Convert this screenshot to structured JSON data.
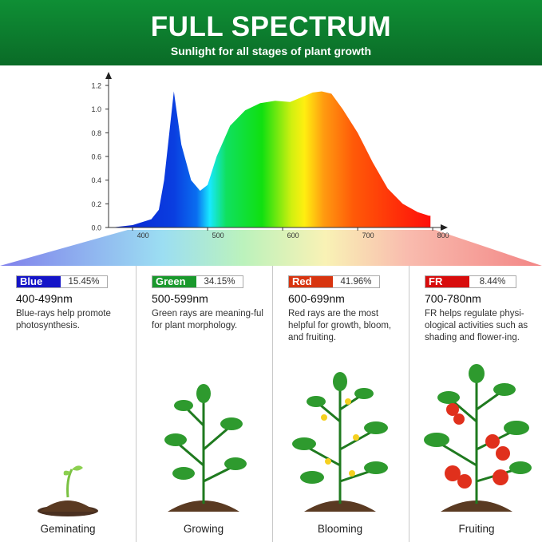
{
  "header": {
    "title": "FULL SPECTRUM",
    "subtitle": "Sunlight for all stages of plant growth"
  },
  "chart_data": {
    "type": "area",
    "title": "",
    "xlabel": "",
    "ylabel": "",
    "xlim": [
      368,
      810
    ],
    "ylim": [
      0,
      1.25
    ],
    "x_ticks": [
      "400",
      "500",
      "600",
      "700",
      "800"
    ],
    "y_ticks": [
      "0.0",
      "0.2",
      "0.4",
      "0.6",
      "0.8",
      "1.0",
      "1.2"
    ],
    "x": [
      372,
      400,
      425,
      435,
      442,
      455,
      465,
      478,
      490,
      500,
      512,
      530,
      550,
      570,
      590,
      610,
      625,
      640,
      652,
      665,
      680,
      700,
      720,
      740,
      760,
      780,
      795,
      797
    ],
    "y": [
      0,
      0.02,
      0.07,
      0.15,
      0.4,
      1.15,
      0.7,
      0.4,
      0.31,
      0.36,
      0.6,
      0.86,
      0.99,
      1.05,
      1.07,
      1.06,
      1.1,
      1.14,
      1.15,
      1.13,
      1.0,
      0.8,
      0.55,
      0.33,
      0.2,
      0.13,
      0.1,
      0.1
    ],
    "fill": "visible-spectrum gradient",
    "grid": false
  },
  "bands": [
    {
      "name": "Blue",
      "percent": "15.45%",
      "range": "400-499nm",
      "desc": "Blue-rays help promote photosynthesis.",
      "stage": "Geminating",
      "color": "#1414c8"
    },
    {
      "name": "Green",
      "percent": "34.15%",
      "range": "500-599nm",
      "desc": "Green rays are meaning-ful for plant morphology.",
      "stage": "Growing",
      "color": "#19992c"
    },
    {
      "name": "Red",
      "percent": "41.96%",
      "range": "600-699nm",
      "desc": "Red rays are the most helpful for growth, bloom, and fruiting.",
      "stage": "Blooming",
      "color": "#d8340f"
    },
    {
      "name": "FR",
      "percent": "8.44%",
      "range": "700-780nm",
      "desc": "FR helps regulate physi-ological activities such as shading and flower-ing.",
      "stage": "Fruiting",
      "color": "#d80c0c"
    }
  ]
}
